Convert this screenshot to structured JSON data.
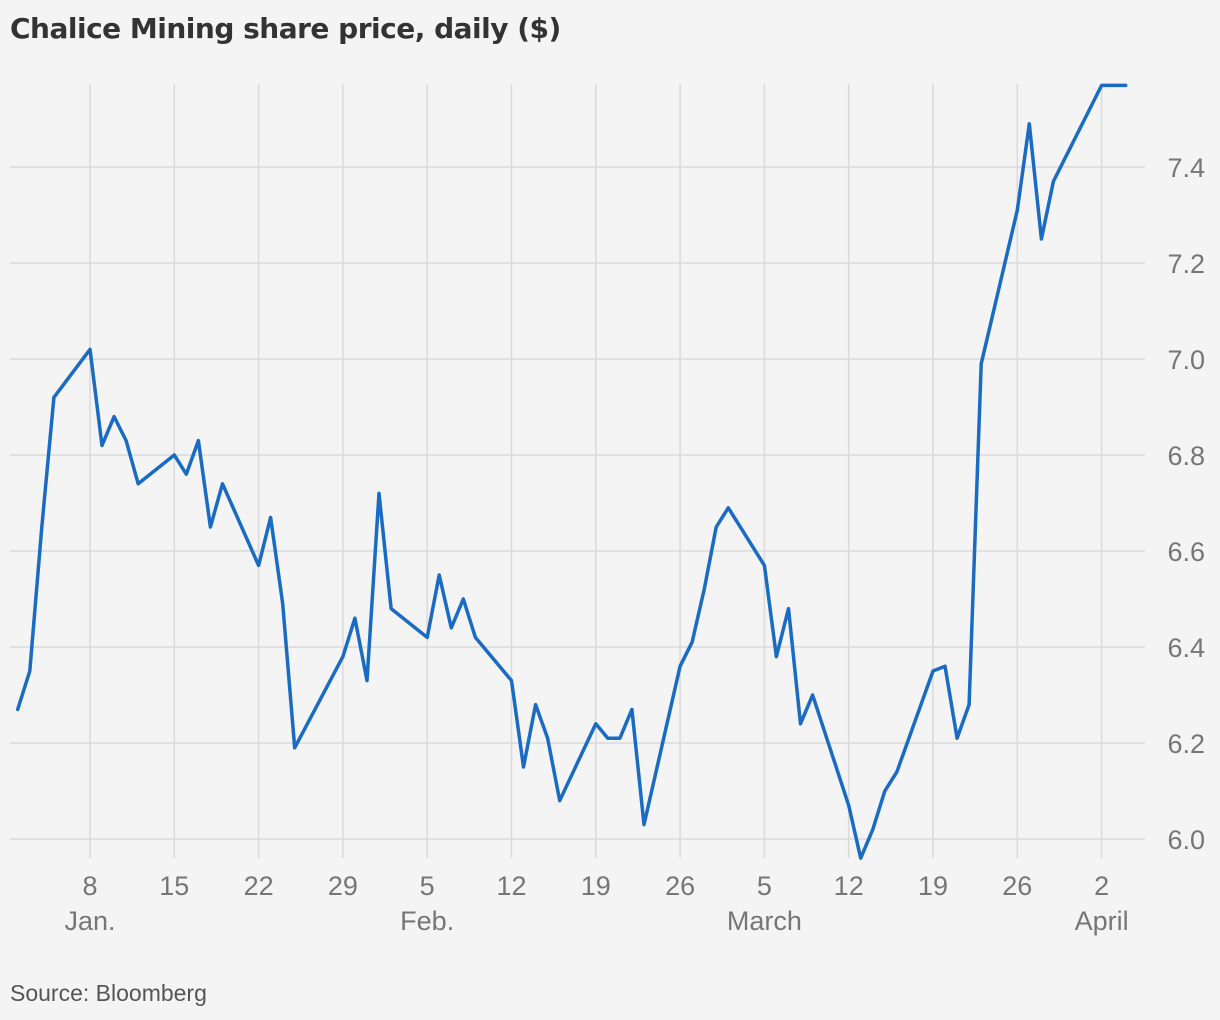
{
  "source": "Source: Bloomberg",
  "chart_data": {
    "type": "line",
    "title": "Chalice Mining share price, daily ($)",
    "xlabel": "",
    "ylabel": "",
    "line_color": "#1a6bc4",
    "grid": true,
    "ylim": [
      5.95,
      7.57
    ],
    "y_ticks": [
      6.0,
      6.2,
      6.4,
      6.6,
      6.8,
      7.0,
      7.2,
      7.4
    ],
    "y_tick_labels": [
      "6.0",
      "6.2",
      "6.4",
      "6.6",
      "6.8",
      "7.0",
      "7.2",
      "7.4"
    ],
    "y_axis_position": "right",
    "xlim": [
      "2024-01-03",
      "2024-04-04"
    ],
    "x_ticks": [
      {
        "date": "2024-01-08",
        "label": "8",
        "month": "Jan."
      },
      {
        "date": "2024-01-15",
        "label": "15"
      },
      {
        "date": "2024-01-22",
        "label": "22"
      },
      {
        "date": "2024-01-29",
        "label": "29"
      },
      {
        "date": "2024-02-05",
        "label": "5",
        "month": "Feb."
      },
      {
        "date": "2024-02-12",
        "label": "12"
      },
      {
        "date": "2024-02-19",
        "label": "19"
      },
      {
        "date": "2024-02-26",
        "label": "26"
      },
      {
        "date": "2024-03-04",
        "label": "5",
        "month": "March"
      },
      {
        "date": "2024-03-11",
        "label": "12"
      },
      {
        "date": "2024-03-18",
        "label": "19"
      },
      {
        "date": "2024-03-25",
        "label": "26"
      },
      {
        "date": "2024-04-01",
        "label": "2",
        "month": "April"
      }
    ],
    "series": [
      {
        "x": [
          "2024-01-02",
          "2024-01-03",
          "2024-01-04",
          "2024-01-05",
          "2024-01-08",
          "2024-01-09",
          "2024-01-10",
          "2024-01-11",
          "2024-01-12",
          "2024-01-15",
          "2024-01-16",
          "2024-01-17",
          "2024-01-18",
          "2024-01-19",
          "2024-01-22",
          "2024-01-23",
          "2024-01-24",
          "2024-01-25",
          "2024-01-29",
          "2024-01-30",
          "2024-01-31",
          "2024-02-01",
          "2024-02-02",
          "2024-02-05",
          "2024-02-06",
          "2024-02-07",
          "2024-02-08",
          "2024-02-09",
          "2024-02-12",
          "2024-02-13",
          "2024-02-14",
          "2024-02-15",
          "2024-02-16",
          "2024-02-19",
          "2024-02-20",
          "2024-02-21",
          "2024-02-22",
          "2024-02-23",
          "2024-02-26",
          "2024-02-27",
          "2024-02-28",
          "2024-02-29",
          "2024-03-01",
          "2024-03-04",
          "2024-03-05",
          "2024-03-06",
          "2024-03-07",
          "2024-03-08",
          "2024-03-11",
          "2024-03-12",
          "2024-03-13",
          "2024-03-14",
          "2024-03-15",
          "2024-03-18",
          "2024-03-19",
          "2024-03-20",
          "2024-03-21",
          "2024-03-22",
          "2024-03-25",
          "2024-03-26",
          "2024-03-27",
          "2024-03-28",
          "2024-04-01",
          "2024-04-02",
          "2024-04-03"
        ],
        "values": [
          6.27,
          6.35,
          6.65,
          6.92,
          7.02,
          6.82,
          6.88,
          6.83,
          6.74,
          6.8,
          6.76,
          6.83,
          6.65,
          6.74,
          6.57,
          6.67,
          6.49,
          6.19,
          6.38,
          6.46,
          6.33,
          6.72,
          6.48,
          6.42,
          6.55,
          6.44,
          6.5,
          6.42,
          6.33,
          6.15,
          6.28,
          6.21,
          6.08,
          6.24,
          6.21,
          6.21,
          6.27,
          6.03,
          6.36,
          6.41,
          6.52,
          6.65,
          6.69,
          6.57,
          6.38,
          6.48,
          6.24,
          6.3,
          6.07,
          5.96,
          6.02,
          6.1,
          6.14,
          6.35,
          6.36,
          6.21,
          6.28,
          6.99,
          7.31,
          7.49,
          7.25,
          7.37,
          7.57,
          7.57,
          7.57
        ]
      }
    ]
  }
}
